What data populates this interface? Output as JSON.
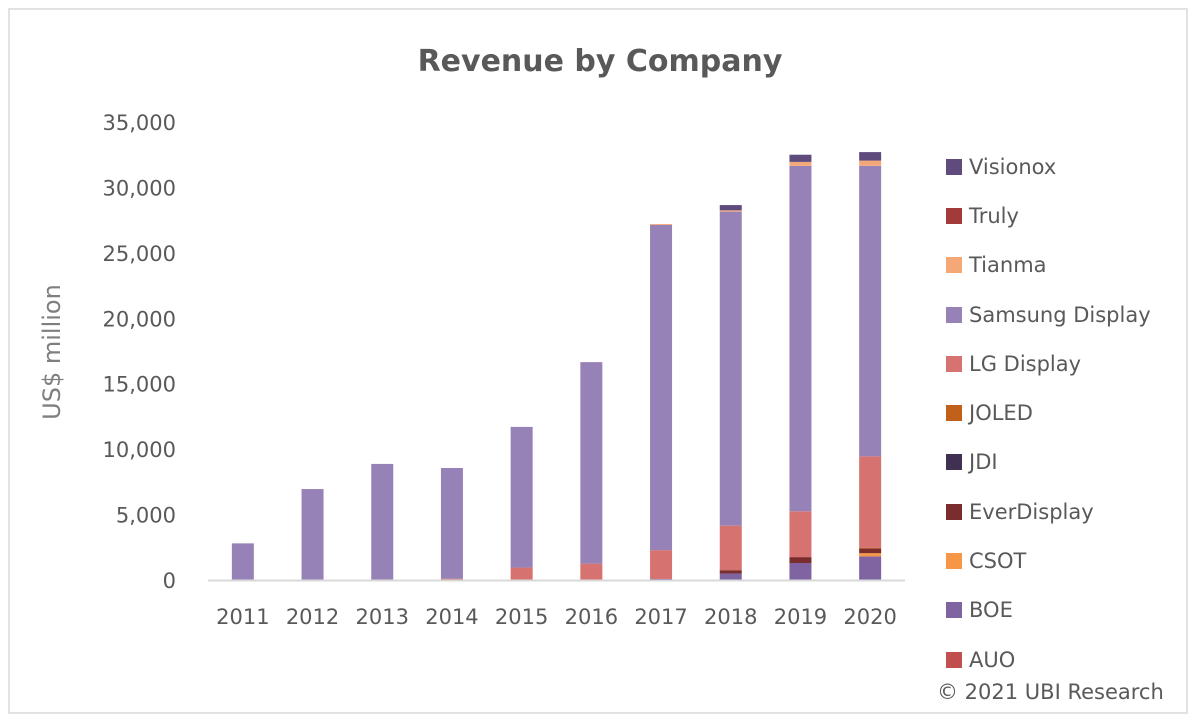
{
  "chart_data": {
    "type": "bar",
    "stacked": true,
    "title": "Revenue by Company",
    "xlabel": "",
    "ylabel": "US$ million",
    "ylim": [
      0,
      35000
    ],
    "yticks": [
      0,
      5000,
      10000,
      15000,
      20000,
      25000,
      30000,
      35000
    ],
    "ytick_labels": [
      "0",
      "5,000",
      "10,000",
      "15,000",
      "20,000",
      "25,000",
      "30,000",
      "35,000"
    ],
    "grid": false,
    "legend_position": "right",
    "categories": [
      "2011",
      "2012",
      "2013",
      "2014",
      "2015",
      "2016",
      "2017",
      "2018",
      "2019",
      "2020"
    ],
    "series": [
      {
        "name": "AUO",
        "color": "#c0504d",
        "values": [
          0,
          0,
          0,
          0,
          0,
          0,
          0,
          0,
          0,
          0
        ]
      },
      {
        "name": "BOE",
        "color": "#8064a2",
        "values": [
          0,
          0,
          0,
          0,
          0,
          0,
          80,
          500,
          1300,
          1800
        ]
      },
      {
        "name": "CSOT",
        "color": "#f79646",
        "values": [
          0,
          0,
          0,
          0,
          0,
          0,
          0,
          0,
          0,
          250
        ]
      },
      {
        "name": "EverDisplay",
        "color": "#7b2c2c",
        "values": [
          0,
          0,
          0,
          0,
          0,
          0,
          0,
          250,
          450,
          350
        ]
      },
      {
        "name": "JDI",
        "color": "#403152",
        "values": [
          0,
          0,
          0,
          0,
          0,
          0,
          0,
          0,
          0,
          0
        ]
      },
      {
        "name": "JOLED",
        "color": "#c0601a",
        "values": [
          0,
          0,
          0,
          0,
          0,
          0,
          0,
          0,
          0,
          50
        ]
      },
      {
        "name": "LG Display",
        "color": "#d67370",
        "values": [
          0,
          0,
          0,
          100,
          950,
          1250,
          2200,
          3400,
          3500,
          7000
        ]
      },
      {
        "name": "Samsung Display",
        "color": "#9782b8",
        "values": [
          2800,
          6950,
          8870,
          8460,
          10750,
          15400,
          24850,
          24000,
          26400,
          22200
        ]
      },
      {
        "name": "Tianma",
        "color": "#f4a878",
        "values": [
          0,
          0,
          0,
          0,
          0,
          0,
          70,
          100,
          300,
          400
        ]
      },
      {
        "name": "Truly",
        "color": "#a33a3a",
        "values": [
          0,
          0,
          0,
          0,
          0,
          0,
          0,
          0,
          0,
          0
        ]
      },
      {
        "name": "Visionox",
        "color": "#5f4b7e",
        "values": [
          0,
          0,
          0,
          0,
          0,
          0,
          0,
          400,
          550,
          650
        ]
      }
    ]
  },
  "legend": {
    "items": [
      {
        "label": "Visionox",
        "color": "#5f4b7e"
      },
      {
        "label": "Truly",
        "color": "#a33a3a"
      },
      {
        "label": "Tianma",
        "color": "#f4a878"
      },
      {
        "label": "Samsung Display",
        "color": "#9782b8"
      },
      {
        "label": "LG Display",
        "color": "#d67370"
      },
      {
        "label": "JOLED",
        "color": "#c0601a"
      },
      {
        "label": "JDI",
        "color": "#403152"
      },
      {
        "label": "EverDisplay",
        "color": "#7b2c2c"
      },
      {
        "label": "CSOT",
        "color": "#f79646"
      },
      {
        "label": "BOE",
        "color": "#8064a2"
      },
      {
        "label": "AUO",
        "color": "#c0504d"
      }
    ]
  },
  "copyright": "© 2021 UBI Research"
}
